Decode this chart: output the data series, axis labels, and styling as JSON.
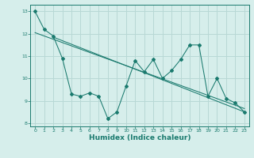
{
  "xlabel": "Humidex (Indice chaleur)",
  "background_color": "#d6eeeb",
  "grid_color": "#b8d8d5",
  "line_color": "#1a7a6e",
  "xlim": [
    -0.5,
    23.5
  ],
  "ylim": [
    7.85,
    13.3
  ],
  "yticks": [
    8,
    9,
    10,
    11,
    12,
    13
  ],
  "xticks": [
    0,
    1,
    2,
    3,
    4,
    5,
    6,
    7,
    8,
    9,
    10,
    11,
    12,
    13,
    14,
    15,
    16,
    17,
    18,
    19,
    20,
    21,
    22,
    23
  ],
  "main_x": [
    0,
    1,
    2,
    3,
    4,
    5,
    6,
    7,
    8,
    9,
    10,
    11,
    12,
    13,
    14,
    15,
    16,
    17,
    18,
    19,
    20,
    21,
    22,
    23
  ],
  "main_y": [
    13.0,
    12.2,
    11.9,
    10.9,
    9.3,
    9.2,
    9.35,
    9.2,
    8.2,
    8.5,
    9.65,
    10.8,
    10.3,
    10.85,
    10.0,
    10.35,
    10.85,
    11.5,
    11.5,
    9.2,
    10.0,
    9.1,
    8.9,
    8.5
  ],
  "trend1_x": [
    0,
    23
  ],
  "trend1_y": [
    12.05,
    8.65
  ],
  "trend2_x": [
    2,
    23
  ],
  "trend2_y": [
    11.85,
    8.5
  ]
}
